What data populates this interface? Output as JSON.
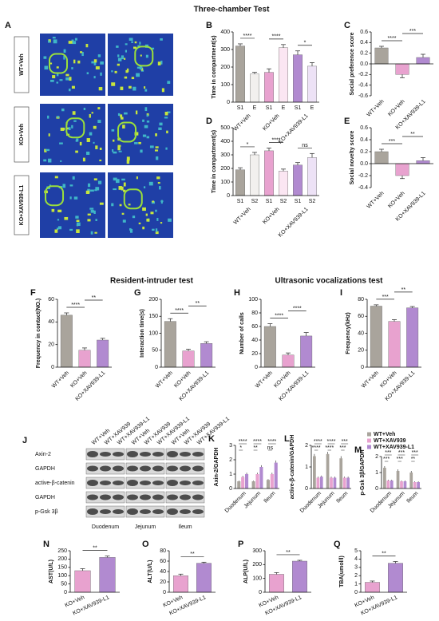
{
  "section_titles": [
    "Three-chamber Test",
    "Resident-intruder test",
    "Ultrasonic vocalizations test"
  ],
  "panel_a": {
    "panel": "A",
    "rows": [
      "WT+Veh",
      "KO+Veh",
      "KO+XAV939-L1"
    ]
  },
  "panel_j": {
    "panel": "J",
    "lanes": [
      "WT+Veh",
      "WT+XAV939",
      "WT+XAV939-L1"
    ],
    "rows": [
      "Axin-2",
      "GAPDH",
      "active-β-catenin",
      "GAPDH",
      "p-Gsk 3β"
    ],
    "tissues": [
      "Duodenum",
      "Jejunum",
      "Ileum"
    ]
  },
  "chart_data": [
    {
      "type": "bar",
      "panel": "B",
      "ylabel": "Time in compartment(s)",
      "categories": [
        "S1",
        "E",
        "S1",
        "E",
        "S1",
        "E"
      ],
      "groups": [
        "WT+Veh",
        "KO+Veh",
        "KO+XAV939-L1"
      ],
      "values": [
        320,
        160,
        170,
        310,
        270,
        205
      ],
      "errors": [
        12,
        10,
        20,
        18,
        22,
        20
      ],
      "colors": [
        "#a9a49c",
        "#f2f0ee",
        "#e8a2cf",
        "#fbe6f2",
        "#b18ad0",
        "#ede2f6"
      ],
      "ylim": [
        0,
        400
      ],
      "yticks": [
        0,
        100,
        200,
        300,
        400
      ],
      "annotations": [
        {
          "label": "****",
          "from": 0,
          "to": 1
        },
        {
          "label": "****",
          "from": 2,
          "to": 3
        },
        {
          "label": "*",
          "from": 4,
          "to": 5
        }
      ]
    },
    {
      "type": "bar",
      "panel": "C",
      "ylabel": "Social preference score",
      "categories": [
        "WT+Veh",
        "KO+Veh",
        "KO+XAV939-L1"
      ],
      "values": [
        0.3,
        -0.2,
        0.12
      ],
      "errors": [
        0.03,
        0.06,
        0.06
      ],
      "colors": [
        "#a9a49c",
        "#e8a2cf",
        "#b18ad0"
      ],
      "ylim": [
        -0.6,
        0.6
      ],
      "yticks": [
        -0.6,
        -0.4,
        -0.2,
        {
          "value": 0,
          "label": "0.0"
        },
        0.2,
        0.4,
        0.6
      ],
      "annotations": [
        {
          "label": "****",
          "from": 0,
          "to": 1
        },
        {
          "label": "***",
          "from": 1,
          "to": 2
        }
      ]
    },
    {
      "type": "bar",
      "panel": "D",
      "ylabel": "Time in compartment(s)",
      "categories": [
        "S1",
        "S2",
        "S1",
        "S2",
        "S1",
        "S2"
      ],
      "groups": [
        "WT+Veh",
        "KO+Veh",
        "KO+XAV939-L1"
      ],
      "values": [
        190,
        300,
        330,
        180,
        225,
        280
      ],
      "errors": [
        15,
        18,
        20,
        15,
        18,
        30
      ],
      "colors": [
        "#a9a49c",
        "#f2f0ee",
        "#e8a2cf",
        "#fbe6f2",
        "#b18ad0",
        "#ede2f6"
      ],
      "ylim": [
        0,
        500
      ],
      "yticks": [
        0,
        100,
        200,
        300,
        400,
        500
      ],
      "annotations": [
        {
          "label": "*",
          "from": 0,
          "to": 1
        },
        {
          "label": "****",
          "from": 2,
          "to": 3
        },
        {
          "label": "ns",
          "from": 4,
          "to": 5
        }
      ]
    },
    {
      "type": "bar",
      "panel": "E",
      "ylabel": "Social novelty score",
      "categories": [
        "WT+Veh",
        "KO+Veh",
        "KO+XAV939-L1"
      ],
      "values": [
        0.2,
        -0.2,
        0.05
      ],
      "errors": [
        0.04,
        0.05,
        0.05
      ],
      "colors": [
        "#a9a49c",
        "#e8a2cf",
        "#b18ad0"
      ],
      "ylim": [
        -0.4,
        0.6
      ],
      "yticks": [
        -0.4,
        -0.2,
        {
          "value": 0,
          "label": "0.0"
        },
        0.2,
        0.4,
        0.6
      ],
      "annotations": [
        {
          "label": "***",
          "from": 0,
          "to": 1
        },
        {
          "label": "**",
          "from": 1,
          "to": 2
        }
      ]
    },
    {
      "type": "bar",
      "panel": "F",
      "ylabel": "Frequency in contact(NO.)",
      "categories": [
        "WT+Veh",
        "KO+Veh",
        "KO+XAV939-L1"
      ],
      "values": [
        46,
        15,
        24
      ],
      "errors": [
        2,
        2,
        1.5
      ],
      "colors": [
        "#a9a49c",
        "#e8a2cf",
        "#b18ad0"
      ],
      "ylim": [
        0,
        60
      ],
      "yticks": [
        0,
        20,
        40,
        60
      ],
      "annotations": [
        {
          "label": "****",
          "from": 0,
          "to": 1
        },
        {
          "label": "**",
          "from": 1,
          "to": 2
        }
      ]
    },
    {
      "type": "bar",
      "panel": "G",
      "ylabel": "Interaction time(s)",
      "categories": [
        "WT+Veh",
        "KO+Veh",
        "KO+XAV939-L1"
      ],
      "values": [
        135,
        48,
        70
      ],
      "errors": [
        8,
        5,
        5
      ],
      "colors": [
        "#a9a49c",
        "#e8a2cf",
        "#b18ad0"
      ],
      "ylim": [
        0,
        200
      ],
      "yticks": [
        0,
        50,
        100,
        150,
        200
      ],
      "annotations": [
        {
          "label": "****",
          "from": 0,
          "to": 1
        },
        {
          "label": "**",
          "from": 1,
          "to": 2
        }
      ]
    },
    {
      "type": "bar",
      "panel": "H",
      "ylabel": "Number of calls",
      "categories": [
        "WT+Veh",
        "KO+Veh",
        "KO+XAV939-L1"
      ],
      "values": [
        60,
        18,
        46
      ],
      "errors": [
        4,
        3,
        5
      ],
      "colors": [
        "#a9a49c",
        "#e8a2cf",
        "#b18ad0"
      ],
      "ylim": [
        0,
        100
      ],
      "yticks": [
        0,
        20,
        40,
        60,
        80,
        100
      ],
      "annotations": [
        {
          "label": "****",
          "from": 0,
          "to": 1
        },
        {
          "label": "****",
          "from": 1,
          "to": 2
        }
      ]
    },
    {
      "type": "bar",
      "panel": "I",
      "ylabel": "Frequency(kHz)",
      "categories": [
        "WT+Veh",
        "KO+Veh",
        "KO+XAV939-L1"
      ],
      "values": [
        72,
        54,
        70
      ],
      "errors": [
        1.5,
        2,
        1.5
      ],
      "colors": [
        "#a9a49c",
        "#e8a2cf",
        "#b18ad0"
      ],
      "ylim": [
        0,
        80
      ],
      "yticks": [
        0,
        20,
        40,
        60,
        80
      ],
      "annotations": [
        {
          "label": "***",
          "from": 0,
          "to": 1
        },
        {
          "label": "**",
          "from": 1,
          "to": 2
        }
      ]
    },
    {
      "type": "grouped_bar",
      "panel": "K",
      "ylabel": "Axin-2/GAPDH",
      "categories": [
        "Duodenum",
        "Jejunum",
        "Ileum"
      ],
      "series": [
        {
          "color": "#a9a49c",
          "values": [
            0.5,
            0.5,
            0.6
          ],
          "errors": [
            0.05,
            0.05,
            0.05
          ]
        },
        {
          "color": "#e8a2cf",
          "values": [
            0.8,
            1.0,
            1.0
          ],
          "errors": [
            0.08,
            0.1,
            0.1
          ]
        },
        {
          "color": "#b18ad0",
          "values": [
            1.0,
            1.5,
            1.8
          ],
          "errors": [
            0.1,
            0.12,
            0.15
          ]
        }
      ],
      "ylim": [
        0,
        3
      ],
      "yticks": [
        0,
        1,
        2,
        3
      ],
      "annotations": [
        {
          "label": "****",
          "category": 0,
          "from": 0,
          "to": 2
        },
        {
          "label": "*",
          "category": 0,
          "from": 0,
          "to": 1
        },
        {
          "label": "****",
          "category": 1,
          "from": 0,
          "to": 2
        },
        {
          "label": "**",
          "category": 1,
          "from": 0,
          "to": 1
        },
        {
          "label": "****",
          "category": 2,
          "from": 0,
          "to": 2
        },
        {
          "label": "ns",
          "category": 2,
          "from": 0,
          "to": 1
        }
      ]
    },
    {
      "type": "grouped_bar",
      "panel": "L",
      "ylabel": "active-β-catenin/GAPDH",
      "categories": [
        "Duodenum",
        "Jejunum",
        "Ileum"
      ],
      "series": [
        {
          "color": "#a9a49c",
          "values": [
            1.5,
            1.6,
            1.4
          ],
          "errors": [
            0.1,
            0.1,
            0.1
          ]
        },
        {
          "color": "#e8a2cf",
          "values": [
            0.5,
            0.5,
            0.5
          ],
          "errors": [
            0.05,
            0.05,
            0.05
          ]
        },
        {
          "color": "#b18ad0",
          "values": [
            0.55,
            0.5,
            0.5
          ],
          "errors": [
            0.05,
            0.05,
            0.05
          ]
        }
      ],
      "ylim": [
        0,
        2
      ],
      "yticks": [
        0,
        1,
        2
      ],
      "annotations": [
        {
          "label": "****",
          "category": 0,
          "from": 0,
          "to": 2
        },
        {
          "label": "****",
          "category": 0,
          "from": 0,
          "to": 1
        },
        {
          "label": "****",
          "category": 1,
          "from": 0,
          "to": 2
        },
        {
          "label": "****",
          "category": 1,
          "from": 0,
          "to": 1
        },
        {
          "label": "***",
          "category": 2,
          "from": 0,
          "to": 2
        },
        {
          "label": "***",
          "category": 2,
          "from": 0,
          "to": 1
        }
      ]
    },
    {
      "type": "grouped_bar",
      "panel": "M",
      "ylabel": "p-Gsk 3β/GAPDH",
      "categories": [
        "Duodenum",
        "Jejunum",
        "Ileum"
      ],
      "series": [
        {
          "name": "WT+Veh",
          "color": "#a9a49c",
          "values": [
            1.3,
            1.1,
            1.0
          ],
          "errors": [
            0.1,
            0.1,
            0.1
          ]
        },
        {
          "name": "WT+XAV939",
          "color": "#e8a2cf",
          "values": [
            0.5,
            0.45,
            0.4
          ],
          "errors": [
            0.05,
            0.05,
            0.05
          ]
        },
        {
          "name": "WT+XAV939-L1",
          "color": "#b18ad0",
          "values": [
            0.5,
            0.45,
            0.4
          ],
          "errors": [
            0.05,
            0.05,
            0.05
          ]
        }
      ],
      "ylim": [
        0,
        2
      ],
      "yticks": [
        0,
        1,
        2
      ],
      "legend": "top-right",
      "annotations": [
        {
          "label": "***",
          "category": 0,
          "from": 0,
          "to": 2
        },
        {
          "label": "***",
          "category": 0,
          "from": 0,
          "to": 1
        },
        {
          "label": "***",
          "category": 1,
          "from": 0,
          "to": 2
        },
        {
          "label": "***",
          "category": 1,
          "from": 0,
          "to": 1
        },
        {
          "label": "***",
          "category": 2,
          "from": 0,
          "to": 2
        },
        {
          "label": "**",
          "category": 2,
          "from": 0,
          "to": 1
        }
      ]
    },
    {
      "type": "bar",
      "panel": "N",
      "ylabel": "AST(U/L)",
      "categories": [
        "KO+Veh",
        "KO+XAV939-L1"
      ],
      "values": [
        130,
        210
      ],
      "errors": [
        12,
        8
      ],
      "colors": [
        "#e8a2cf",
        "#b18ad0"
      ],
      "ylim": [
        0,
        250
      ],
      "yticks": [
        0,
        50,
        100,
        150,
        200,
        250
      ],
      "annotations": [
        {
          "label": "**",
          "from": 0,
          "to": 1
        }
      ]
    },
    {
      "type": "bar",
      "panel": "O",
      "ylabel": "ALT(U/L)",
      "categories": [
        "KO+Veh",
        "KO+XAV939-L1"
      ],
      "values": [
        32,
        56
      ],
      "errors": [
        3,
        2
      ],
      "colors": [
        "#e8a2cf",
        "#b18ad0"
      ],
      "ylim": [
        0,
        80
      ],
      "yticks": [
        0,
        20,
        40,
        60,
        80
      ],
      "annotations": [
        {
          "label": "**",
          "from": 0,
          "to": 1
        }
      ]
    },
    {
      "type": "bar",
      "panel": "P",
      "ylabel": "ALP(U/L)",
      "categories": [
        "KO+Veh",
        "KO+XAV939-L1"
      ],
      "values": [
        130,
        225
      ],
      "errors": [
        12,
        6
      ],
      "colors": [
        "#e8a2cf",
        "#b18ad0"
      ],
      "ylim": [
        0,
        300
      ],
      "yticks": [
        0,
        100,
        200,
        300
      ],
      "annotations": [
        {
          "label": "**",
          "from": 0,
          "to": 1
        }
      ]
    },
    {
      "type": "bar",
      "panel": "Q",
      "ylabel": "TBA(umol/l)",
      "categories": [
        "KO+Veh",
        "KO+XAV939-L1"
      ],
      "values": [
        1.2,
        3.5
      ],
      "errors": [
        0.15,
        0.2
      ],
      "colors": [
        "#e8a2cf",
        "#b18ad0"
      ],
      "ylim": [
        0,
        5
      ],
      "yticks": [
        0,
        1,
        2,
        3,
        4,
        5
      ],
      "annotations": [
        {
          "label": "**",
          "from": 0,
          "to": 1
        }
      ]
    }
  ]
}
